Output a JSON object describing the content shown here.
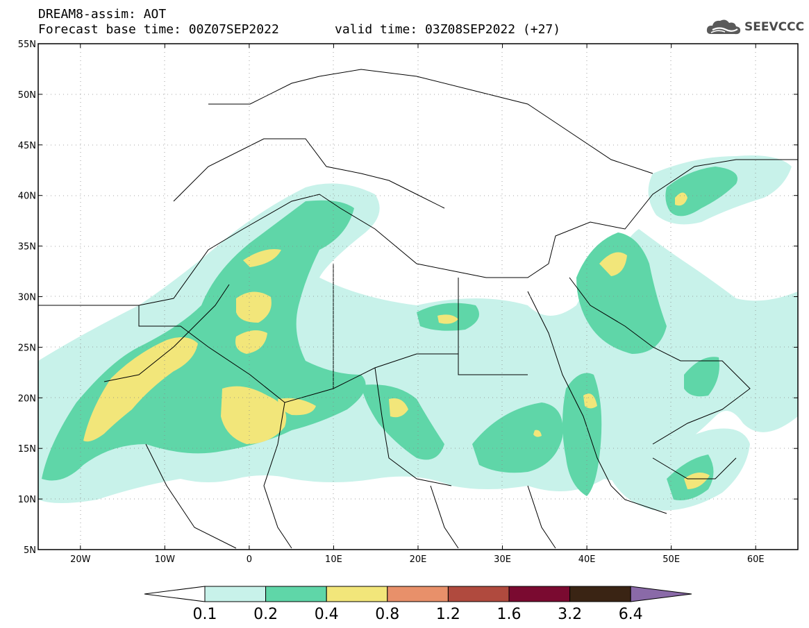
{
  "header": {
    "title": "DREAM8-assim: AOT",
    "base_time": "Forecast base time: 00Z07SEP2022",
    "valid_time": "valid time: 03Z08SEP2022 (+27)"
  },
  "logo": {
    "icon": "cloud-icon",
    "text": "SEEVCCC"
  },
  "map": {
    "lon_range": [
      -25,
      65
    ],
    "lat_range": [
      5,
      55
    ],
    "lat_ticks": [
      "5N",
      "10N",
      "15N",
      "20N",
      "25N",
      "30N",
      "35N",
      "40N",
      "45N",
      "50N",
      "55N"
    ],
    "lon_ticks": [
      "20W",
      "10W",
      "0",
      "10E",
      "20E",
      "30E",
      "40E",
      "50E",
      "60E"
    ],
    "grid": "dotted"
  },
  "colorbar": {
    "labels": [
      "0.1",
      "0.2",
      "0.4",
      "0.8",
      "1.2",
      "1.6",
      "3.2",
      "6.4"
    ],
    "colors": [
      "#ffffff",
      "#c8f2ea",
      "#5fd6a8",
      "#f2e67a",
      "#e8906a",
      "#b04a3e",
      "#7a0a30",
      "#3a2414",
      "#8a6aa8"
    ]
  },
  "palette": {
    "level1": "#c8f2ea",
    "level2": "#5fd6a8",
    "level3": "#f2e67a"
  }
}
